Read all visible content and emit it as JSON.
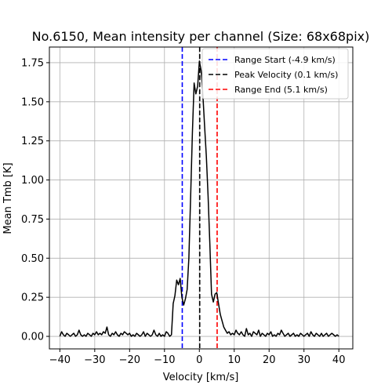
{
  "chart_data": {
    "type": "line",
    "title": "No.6150, Mean intensity per channel (Size: 68x68pix)",
    "xlabel": "Velocity [km/s]",
    "ylabel": "Mean Tmb [K]",
    "xlim": [
      -43,
      44
    ],
    "ylim": [
      -0.08,
      1.85
    ],
    "grid": true,
    "legend_position": "top-right",
    "x_ticks": [
      -40,
      -30,
      -20,
      -10,
      0,
      10,
      20,
      30,
      40
    ],
    "x_tick_labels": [
      "−40",
      "−30",
      "−20",
      "−10",
      "0",
      "10",
      "20",
      "30",
      "40"
    ],
    "y_ticks": [
      0.0,
      0.25,
      0.5,
      0.75,
      1.0,
      1.25,
      1.5,
      1.75
    ],
    "y_tick_labels": [
      "0.00",
      "0.25",
      "0.50",
      "0.75",
      "1.00",
      "1.25",
      "1.50",
      "1.75"
    ],
    "series": [
      {
        "name": "",
        "color": "#000000",
        "x": [
          -40,
          -39.5,
          -39,
          -38.5,
          -38,
          -37.5,
          -37,
          -36.5,
          -36,
          -35.5,
          -35,
          -34.5,
          -34,
          -33.5,
          -33,
          -32.5,
          -32,
          -31.5,
          -31,
          -30.5,
          -30,
          -29.5,
          -29,
          -28.5,
          -28,
          -27.5,
          -27,
          -26.5,
          -26,
          -25.5,
          -25,
          -24.5,
          -24,
          -23.5,
          -23,
          -22.5,
          -22,
          -21.5,
          -21,
          -20.5,
          -20,
          -19.5,
          -19,
          -18.5,
          -18,
          -17.5,
          -17,
          -16.5,
          -16,
          -15.5,
          -15,
          -14.5,
          -14,
          -13.5,
          -13,
          -12.5,
          -12,
          -11.5,
          -11,
          -10.5,
          -10,
          -9.5,
          -9,
          -8.5,
          -8,
          -7.5,
          -7,
          -6.5,
          -6,
          -5.5,
          -5,
          -4.5,
          -4,
          -3.5,
          -3,
          -2.5,
          -2,
          -1.5,
          -1,
          -0.5,
          0,
          0.5,
          1,
          1.5,
          2,
          2.5,
          3,
          3.5,
          4,
          4.5,
          5,
          5.5,
          6,
          6.5,
          7,
          7.5,
          8,
          8.5,
          9,
          9.5,
          10,
          10.5,
          11,
          11.5,
          12,
          12.5,
          13,
          13.5,
          14,
          14.5,
          15,
          15.5,
          16,
          16.5,
          17,
          17.5,
          18,
          18.5,
          19,
          19.5,
          20,
          20.5,
          21,
          21.5,
          22,
          22.5,
          23,
          23.5,
          24,
          24.5,
          25,
          25.5,
          26,
          26.5,
          27,
          27.5,
          28,
          28.5,
          29,
          29.5,
          30,
          30.5,
          31,
          31.5,
          32,
          32.5,
          33,
          33.5,
          34,
          34.5,
          35,
          35.5,
          36,
          36.5,
          37,
          37.5,
          38,
          38.5,
          39,
          39.5,
          40
        ],
        "y": [
          0.0,
          0.03,
          0.01,
          0.0,
          0.02,
          0.01,
          0.0,
          0.01,
          0.02,
          0.0,
          0.01,
          0.04,
          0.01,
          0.0,
          0.01,
          0.0,
          0.02,
          0.01,
          0.0,
          0.02,
          0.01,
          0.03,
          0.01,
          0.02,
          0.01,
          0.03,
          0.02,
          0.06,
          0.01,
          0.0,
          0.02,
          0.01,
          0.03,
          0.01,
          0.0,
          0.02,
          0.01,
          0.03,
          0.02,
          0.01,
          0.02,
          0.0,
          0.01,
          0.0,
          0.02,
          0.01,
          0.0,
          0.01,
          0.03,
          0.0,
          0.02,
          0.01,
          0.0,
          0.01,
          0.04,
          0.01,
          0.0,
          0.02,
          0.0,
          0.01,
          0.0,
          0.03,
          0.02,
          0.0,
          0.01,
          0.21,
          0.26,
          0.36,
          0.33,
          0.37,
          0.25,
          0.2,
          0.24,
          0.3,
          0.5,
          0.9,
          1.3,
          1.62,
          1.55,
          1.6,
          1.76,
          1.7,
          1.55,
          1.35,
          1.15,
          0.9,
          0.6,
          0.27,
          0.22,
          0.27,
          0.28,
          0.21,
          0.14,
          0.1,
          0.06,
          0.04,
          0.02,
          0.03,
          0.01,
          0.02,
          0.01,
          0.04,
          0.02,
          0.01,
          0.03,
          0.01,
          0.0,
          0.05,
          0.01,
          0.02,
          0.0,
          0.03,
          0.02,
          0.01,
          0.04,
          0.0,
          0.02,
          0.01,
          0.0,
          0.02,
          0.01,
          0.03,
          0.0,
          0.01,
          0.0,
          0.02,
          0.01,
          0.04,
          0.02,
          0.0,
          0.01,
          0.02,
          0.0,
          0.01,
          0.02,
          0.0,
          0.01,
          0.0,
          0.02,
          0.01,
          0.0,
          0.01,
          0.02,
          0.0,
          0.03,
          0.01,
          0.0,
          0.02,
          0.01,
          0.0,
          0.02,
          0.0,
          0.01,
          0.02,
          0.0,
          0.01,
          0.02,
          0.01,
          0.0,
          0.01,
          0.0
        ]
      }
    ],
    "vlines": [
      {
        "label": "Range Start (-4.9 km/s)",
        "x": -4.9,
        "color": "#0000ff"
      },
      {
        "label": "Peak Velocity (0.1 km/s)",
        "x": 0.1,
        "color": "#000000"
      },
      {
        "label": "Range End (5.1 km/s)",
        "x": 5.1,
        "color": "#ff0000"
      }
    ]
  }
}
